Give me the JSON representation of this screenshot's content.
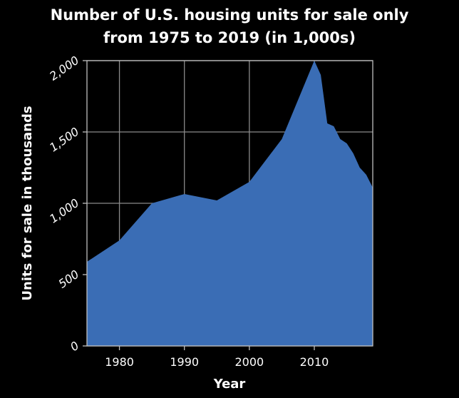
{
  "chart_data": {
    "type": "area",
    "title_lines": [
      "Number of U.S. housing units for sale only",
      "from 1975 to 2019 (in 1,000s)"
    ],
    "xlabel": "Year",
    "ylabel": "Units for sale in thousands",
    "xlim": [
      1975,
      2019
    ],
    "ylim": [
      0,
      2000
    ],
    "xticks": [
      1980,
      1990,
      2000,
      2010
    ],
    "yticks": [
      0,
      500,
      1000,
      1500,
      2000
    ],
    "xtick_labels": [
      "1980",
      "1990",
      "2000",
      "2010"
    ],
    "ytick_labels": [
      "0",
      "500",
      "1,000",
      "1,500",
      "2,000"
    ],
    "grid": true,
    "series": [
      {
        "color": "#3a6db5",
        "x": [
          1975,
          1980,
          1985,
          1990,
          1995,
          2000,
          2005,
          2010,
          2011,
          2012,
          2013,
          2014,
          2015,
          2016,
          2017,
          2018,
          2019
        ],
        "values": [
          590,
          740,
          1000,
          1065,
          1020,
          1150,
          1450,
          2000,
          1900,
          1560,
          1540,
          1450,
          1420,
          1350,
          1250,
          1200,
          1110
        ]
      }
    ]
  }
}
